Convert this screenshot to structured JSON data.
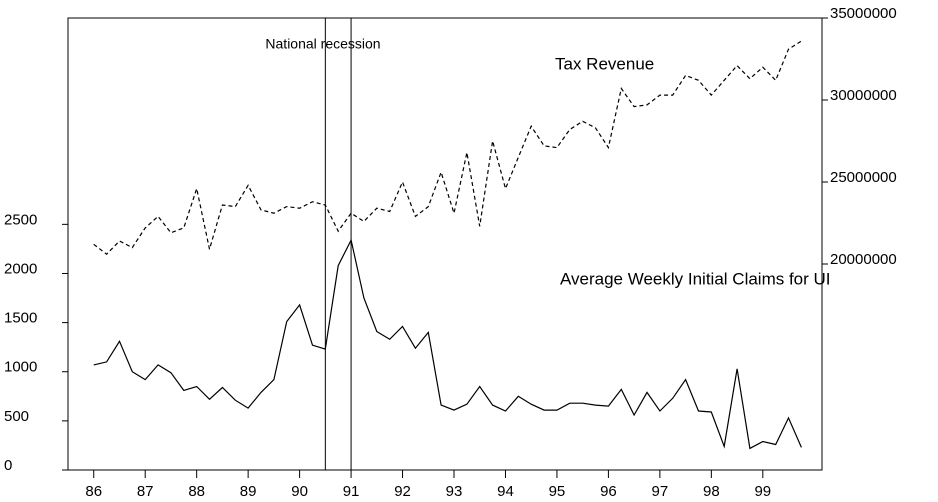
{
  "chart_data": {
    "type": "line",
    "x": [
      1986,
      1986.25,
      1986.5,
      1986.75,
      1987,
      1987.25,
      1987.5,
      1987.75,
      1988,
      1988.25,
      1988.5,
      1988.75,
      1989,
      1989.25,
      1989.5,
      1989.75,
      1990,
      1990.25,
      1990.5,
      1990.75,
      1991,
      1991.25,
      1991.5,
      1991.75,
      1992,
      1992.25,
      1992.5,
      1992.75,
      1993,
      1993.25,
      1993.5,
      1993.75,
      1994,
      1994.25,
      1994.5,
      1994.75,
      1995,
      1995.25,
      1995.5,
      1995.75,
      1996,
      1996.25,
      1996.5,
      1996.75,
      1997,
      1997.25,
      1997.5,
      1997.75,
      1998,
      1998.25,
      1998.5,
      1998.75,
      1999,
      1999.25,
      1999.5,
      1999.75
    ],
    "series": [
      {
        "name": "Average Weekly Initial Claims for UI",
        "color": "#000000",
        "line_style": "solid",
        "values": [
          1070,
          1100,
          1310,
          1000,
          920,
          1070,
          990,
          810,
          850,
          720,
          840,
          710,
          630,
          790,
          920,
          1510,
          1680,
          1270,
          1230,
          2080,
          2340,
          1750,
          1410,
          1330,
          1460,
          1240,
          1400,
          660,
          610,
          670,
          850,
          660,
          600,
          750,
          670,
          610,
          610,
          680,
          680,
          660,
          650,
          820,
          560,
          790,
          600,
          730,
          920,
          600,
          590,
          240,
          1030,
          220,
          290,
          260,
          530,
          230
        ]
      },
      {
        "name": "Tax Revenue",
        "color": "#000000",
        "line_style": "dashed",
        "axis": "y2",
        "values": [
          21200000,
          20600000,
          21400000,
          21000000,
          22200000,
          22900000,
          21900000,
          22200000,
          24600000,
          20900000,
          23600000,
          23500000,
          24800000,
          23300000,
          23100000,
          23500000,
          23400000,
          23800000,
          23600000,
          22000000,
          23100000,
          22600000,
          23400000,
          23200000,
          25000000,
          22900000,
          23500000,
          25600000,
          23100000,
          26800000,
          22300000,
          27500000,
          24600000,
          26500000,
          28400000,
          27200000,
          27100000,
          28200000,
          28700000,
          28300000,
          27100000,
          30700000,
          29600000,
          29700000,
          30300000,
          30300000,
          31500000,
          31200000,
          30300000,
          31200000,
          32100000,
          31300000,
          32000000,
          31200000,
          33100000,
          33600000
        ]
      }
    ],
    "xlim": [
      1985.5,
      2000.15
    ],
    "xticks": [
      {
        "value": 1986,
        "label": "86"
      },
      {
        "value": 1987,
        "label": "87"
      },
      {
        "value": 1988,
        "label": "88"
      },
      {
        "value": 1989,
        "label": "89"
      },
      {
        "value": 1990,
        "label": "90"
      },
      {
        "value": 1991,
        "label": "91"
      },
      {
        "value": 1992,
        "label": "92"
      },
      {
        "value": 1993,
        "label": "93"
      },
      {
        "value": 1994,
        "label": "94"
      },
      {
        "value": 1995,
        "label": "95"
      },
      {
        "value": 1996,
        "label": "96"
      },
      {
        "value": 1997,
        "label": "97"
      },
      {
        "value": 1998,
        "label": "98"
      },
      {
        "value": 1999,
        "label": "99"
      }
    ],
    "ylim": [
      0,
      4600
    ],
    "yticks": [
      0,
      500,
      1000,
      1500,
      2000,
      2500
    ],
    "y2lim": [
      7440000,
      35000000
    ],
    "y2ticks": [
      20000000,
      25000000,
      30000000,
      35000000
    ],
    "recession": {
      "label": "National recession",
      "x": [
        1990.5,
        1991
      ]
    },
    "grid": false
  }
}
